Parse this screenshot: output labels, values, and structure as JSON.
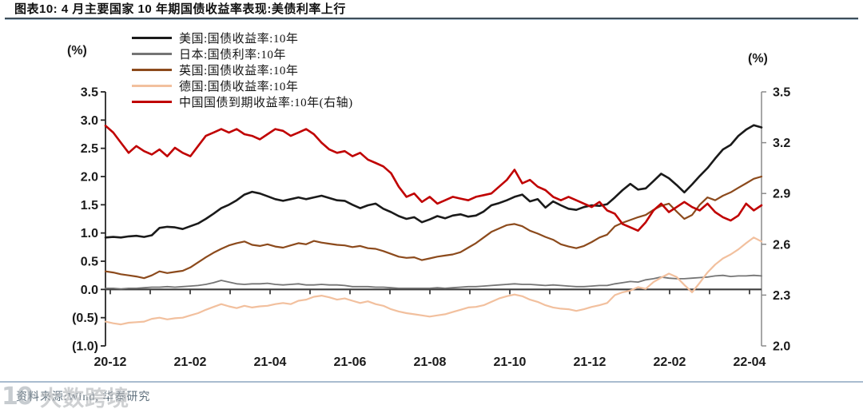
{
  "header": {
    "title": "图表10:  4 月主要国家 10 年期国债收益率表现:美债利率上行"
  },
  "footer": {
    "source": "资料来源:Wind, 华泰研究",
    "watermark_logo": "10",
    "watermark_registered": "®",
    "watermark_text": "大数跨境"
  },
  "chart_data": {
    "type": "line",
    "title": "4月主要国家10年期国债收益率表现",
    "legend_position": "top-left-inside",
    "grid": false,
    "x_axis": {
      "tick_labels": [
        "20-12",
        "21-02",
        "21-04",
        "21-06",
        "21-08",
        "21-10",
        "21-12",
        "22-02",
        "22-04"
      ],
      "minor_ticks_per_label": 2
    },
    "left_axis": {
      "label": "(%)",
      "min": -1.0,
      "max": 3.5,
      "tick_values": [
        3.5,
        3.0,
        2.5,
        2.0,
        1.5,
        1.0,
        0.5,
        0.0,
        -0.5,
        -1.0
      ],
      "tick_labels": [
        "3.5",
        "3.0",
        "2.5",
        "2.0",
        "1.5",
        "1.0",
        "0.5",
        "0.0",
        "(0.5)",
        "(1.0)"
      ]
    },
    "right_axis": {
      "label": "(%)",
      "min": 2.0,
      "max": 3.5,
      "tick_values": [
        3.5,
        3.2,
        2.9,
        2.6,
        2.3,
        2.0
      ],
      "tick_labels": [
        "3.5",
        "3.2",
        "2.9",
        "2.6",
        "2.3",
        "2.0"
      ]
    },
    "series": [
      {
        "name": "日本:国债利率:10年",
        "color": "#757575",
        "axis": "left",
        "line_width": 1.8,
        "values": [
          0.02,
          0.02,
          0.01,
          0.02,
          0.02,
          0.03,
          0.04,
          0.04,
          0.05,
          0.04,
          0.05,
          0.06,
          0.07,
          0.09,
          0.12,
          0.16,
          0.13,
          0.1,
          0.09,
          0.1,
          0.1,
          0.11,
          0.09,
          0.08,
          0.09,
          0.1,
          0.08,
          0.08,
          0.09,
          0.08,
          0.08,
          0.07,
          0.05,
          0.05,
          0.05,
          0.04,
          0.04,
          0.03,
          0.02,
          0.02,
          0.02,
          0.02,
          0.02,
          0.03,
          0.02,
          0.03,
          0.04,
          0.05,
          0.05,
          0.06,
          0.07,
          0.08,
          0.09,
          0.1,
          0.09,
          0.09,
          0.08,
          0.07,
          0.08,
          0.07,
          0.06,
          0.05,
          0.05,
          0.06,
          0.07,
          0.07,
          0.1,
          0.12,
          0.14,
          0.13,
          0.17,
          0.19,
          0.22,
          0.2,
          0.19,
          0.19,
          0.2,
          0.21,
          0.22,
          0.24,
          0.25,
          0.23,
          0.24,
          0.24,
          0.25,
          0.24
        ]
      },
      {
        "name": "德国:国债收益率:10年",
        "color": "#f2c09e",
        "axis": "left",
        "line_width": 2.2,
        "values": [
          -0.57,
          -0.6,
          -0.62,
          -0.59,
          -0.58,
          -0.57,
          -0.52,
          -0.5,
          -0.53,
          -0.51,
          -0.5,
          -0.46,
          -0.42,
          -0.36,
          -0.31,
          -0.26,
          -0.3,
          -0.33,
          -0.29,
          -0.32,
          -0.3,
          -0.29,
          -0.26,
          -0.24,
          -0.26,
          -0.2,
          -0.18,
          -0.13,
          -0.11,
          -0.14,
          -0.18,
          -0.16,
          -0.2,
          -0.24,
          -0.21,
          -0.26,
          -0.29,
          -0.35,
          -0.39,
          -0.42,
          -0.44,
          -0.46,
          -0.48,
          -0.46,
          -0.44,
          -0.4,
          -0.36,
          -0.32,
          -0.31,
          -0.28,
          -0.22,
          -0.16,
          -0.12,
          -0.09,
          -0.12,
          -0.18,
          -0.22,
          -0.28,
          -0.32,
          -0.34,
          -0.35,
          -0.38,
          -0.35,
          -0.31,
          -0.28,
          -0.24,
          -0.1,
          -0.05,
          -0.02,
          0.04,
          0.01,
          0.13,
          0.21,
          0.28,
          0.22,
          0.08,
          -0.05,
          0.12,
          0.3,
          0.44,
          0.55,
          0.62,
          0.71,
          0.82,
          0.92,
          0.85
        ]
      },
      {
        "name": "英国:国债收益率:10年",
        "color": "#8c4a1c",
        "axis": "left",
        "line_width": 2.2,
        "values": [
          0.32,
          0.3,
          0.27,
          0.25,
          0.23,
          0.2,
          0.25,
          0.32,
          0.29,
          0.31,
          0.33,
          0.39,
          0.48,
          0.57,
          0.65,
          0.72,
          0.78,
          0.82,
          0.85,
          0.79,
          0.77,
          0.8,
          0.76,
          0.74,
          0.78,
          0.82,
          0.8,
          0.86,
          0.83,
          0.81,
          0.79,
          0.78,
          0.75,
          0.77,
          0.73,
          0.72,
          0.68,
          0.63,
          0.58,
          0.56,
          0.57,
          0.52,
          0.55,
          0.58,
          0.6,
          0.62,
          0.66,
          0.74,
          0.82,
          0.92,
          1.02,
          1.08,
          1.14,
          1.16,
          1.12,
          1.04,
          0.99,
          0.93,
          0.88,
          0.8,
          0.76,
          0.73,
          0.77,
          0.84,
          0.92,
          0.97,
          1.12,
          1.18,
          1.23,
          1.28,
          1.32,
          1.41,
          1.48,
          1.52,
          1.38,
          1.25,
          1.32,
          1.5,
          1.63,
          1.58,
          1.66,
          1.72,
          1.8,
          1.88,
          1.96,
          2.0
        ]
      },
      {
        "name": "美国:国债收益率:10年",
        "color": "#1a1a1a",
        "axis": "left",
        "line_width": 2.6,
        "values": [
          0.92,
          0.93,
          0.92,
          0.94,
          0.95,
          0.93,
          0.96,
          1.09,
          1.11,
          1.1,
          1.07,
          1.12,
          1.17,
          1.25,
          1.34,
          1.44,
          1.5,
          1.58,
          1.68,
          1.73,
          1.7,
          1.65,
          1.6,
          1.57,
          1.6,
          1.63,
          1.6,
          1.63,
          1.66,
          1.62,
          1.58,
          1.57,
          1.5,
          1.44,
          1.49,
          1.52,
          1.43,
          1.37,
          1.3,
          1.25,
          1.28,
          1.19,
          1.24,
          1.3,
          1.26,
          1.31,
          1.33,
          1.29,
          1.31,
          1.38,
          1.49,
          1.53,
          1.58,
          1.64,
          1.68,
          1.56,
          1.6,
          1.45,
          1.56,
          1.49,
          1.43,
          1.41,
          1.46,
          1.49,
          1.48,
          1.51,
          1.63,
          1.76,
          1.87,
          1.77,
          1.79,
          1.92,
          2.05,
          1.97,
          1.85,
          1.72,
          1.86,
          2.01,
          2.15,
          2.32,
          2.48,
          2.56,
          2.72,
          2.83,
          2.91,
          2.87
        ]
      },
      {
        "name": "中国国债到期收益率:10年(右轴)",
        "color": "#c00000",
        "axis": "right",
        "line_width": 2.6,
        "values": [
          3.3,
          3.26,
          3.2,
          3.14,
          3.18,
          3.15,
          3.13,
          3.16,
          3.12,
          3.17,
          3.14,
          3.12,
          3.18,
          3.24,
          3.26,
          3.28,
          3.26,
          3.28,
          3.25,
          3.24,
          3.22,
          3.25,
          3.28,
          3.27,
          3.24,
          3.26,
          3.28,
          3.25,
          3.2,
          3.16,
          3.14,
          3.15,
          3.12,
          3.14,
          3.1,
          3.08,
          3.06,
          3.02,
          2.94,
          2.88,
          2.9,
          2.85,
          2.88,
          2.84,
          2.86,
          2.88,
          2.87,
          2.86,
          2.88,
          2.89,
          2.9,
          2.94,
          2.98,
          3.04,
          2.96,
          2.98,
          2.94,
          2.92,
          2.88,
          2.86,
          2.88,
          2.86,
          2.84,
          2.82,
          2.85,
          2.8,
          2.78,
          2.72,
          2.7,
          2.68,
          2.73,
          2.8,
          2.84,
          2.79,
          2.82,
          2.85,
          2.82,
          2.8,
          2.84,
          2.79,
          2.76,
          2.74,
          2.77,
          2.84,
          2.8,
          2.83
        ]
      }
    ],
    "legend_order": [
      3,
      0,
      2,
      1,
      4
    ]
  }
}
